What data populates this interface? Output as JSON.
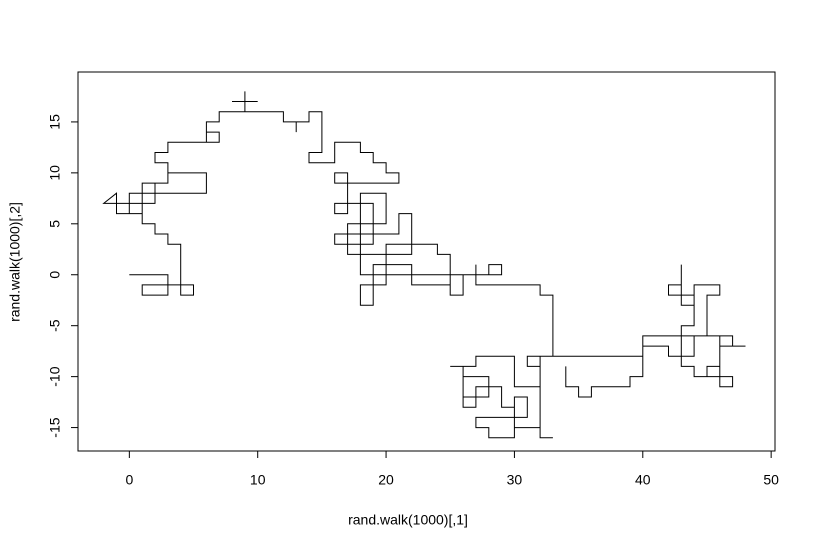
{
  "chart_data": {
    "type": "line",
    "x_label": "rand.walk(1000)[,1]",
    "y_label": "rand.walk(1000)[,2]",
    "color": "#000000",
    "xlim": [
      -4,
      50.3
    ],
    "ylim": [
      -17.3,
      19.9
    ],
    "xticks": [
      0,
      10,
      20,
      30,
      40,
      50
    ],
    "yticks": [
      -15,
      -10,
      -5,
      0,
      5,
      10,
      15
    ],
    "x": [
      0,
      3,
      3,
      1,
      1,
      5,
      5,
      4,
      4,
      3,
      3,
      2,
      2,
      1,
      1,
      0,
      0,
      6,
      6,
      3,
      3,
      2,
      2,
      1,
      1,
      -1,
      -1,
      -2,
      1,
      1,
      3,
      3,
      2,
      2,
      3,
      3,
      6,
      6,
      7,
      7,
      6,
      6,
      7,
      7,
      9,
      9,
      9,
      8,
      10,
      9,
      9,
      12,
      12,
      13,
      13,
      13,
      14,
      14,
      15,
      15,
      14,
      14,
      16,
      16,
      18,
      18,
      19,
      19,
      20,
      20,
      21,
      21,
      16,
      16,
      17,
      17,
      16,
      16,
      19,
      19,
      16,
      16,
      21,
      21,
      22,
      22,
      17,
      17,
      20,
      20,
      18,
      18,
      20,
      20,
      24,
      24,
      25,
      25,
      22,
      22,
      19,
      19,
      18,
      18,
      20,
      20,
      26,
      26,
      25,
      25,
      28,
      28,
      29,
      29,
      27,
      27,
      27,
      32,
      32,
      33,
      33,
      31,
      31,
      32,
      32,
      30,
      30,
      27,
      27,
      25,
      26,
      26,
      28,
      28,
      26,
      26,
      27,
      27,
      29,
      29,
      30,
      30,
      28,
      28,
      27,
      27,
      31,
      31,
      30,
      30,
      32,
      32,
      33,
      32,
      32,
      33,
      40,
      40,
      42,
      42,
      44,
      44,
      46,
      46,
      45,
      45,
      47,
      47,
      46,
      46,
      48,
      47,
      47,
      45,
      45,
      46,
      46,
      44,
      44,
      43,
      43,
      43,
      42,
      42,
      44,
      44,
      43,
      43,
      44,
      44,
      46,
      46,
      40,
      40,
      39,
      39,
      36,
      36,
      35,
      35,
      34,
      34
    ],
    "values": [
      0,
      0,
      -2,
      -2,
      -1,
      -1,
      -2,
      -2,
      3,
      3,
      4,
      4,
      5,
      5,
      6,
      6,
      8,
      8,
      10,
      10,
      9,
      9,
      7,
      7,
      6,
      6,
      8,
      7,
      7,
      9,
      9,
      11,
      11,
      12,
      12,
      13,
      13,
      14,
      14,
      13,
      13,
      15,
      15,
      16,
      16,
      18,
      17,
      17,
      17,
      17,
      16,
      16,
      15,
      15,
      14,
      15,
      15,
      16,
      16,
      12,
      12,
      11,
      11,
      13,
      13,
      12,
      12,
      11,
      11,
      10,
      10,
      9,
      9,
      10,
      10,
      6,
      6,
      7,
      7,
      3,
      3,
      4,
      4,
      6,
      6,
      2,
      2,
      5,
      5,
      8,
      8,
      0,
      0,
      3,
      3,
      2,
      2,
      -1,
      -1,
      1,
      1,
      -3,
      -3,
      -1,
      -1,
      0,
      0,
      -2,
      -2,
      0,
      0,
      1,
      1,
      0,
      0,
      1,
      -1,
      -1,
      -2,
      -2,
      -8,
      -8,
      -9,
      -9,
      -11,
      -11,
      -8,
      -8,
      -9,
      -9,
      -9,
      -12,
      -12,
      -10,
      -10,
      -13,
      -13,
      -11,
      -11,
      -13,
      -13,
      -16,
      -16,
      -15,
      -15,
      -14,
      -14,
      -12,
      -12,
      -15,
      -15,
      -16,
      -16,
      -16,
      -8,
      -8,
      -8,
      -7,
      -7,
      -8,
      -8,
      -6,
      -6,
      -9,
      -9,
      -10,
      -10,
      -11,
      -11,
      -7,
      -7,
      -7,
      -6,
      -6,
      -2,
      -2,
      -1,
      -1,
      -3,
      -3,
      1,
      -1,
      -1,
      -2,
      -2,
      -5,
      -5,
      -9,
      -9,
      -10,
      -10,
      -6,
      -6,
      -10,
      -10,
      -11,
      -11,
      -12,
      -12,
      -11,
      -11,
      -9
    ]
  }
}
